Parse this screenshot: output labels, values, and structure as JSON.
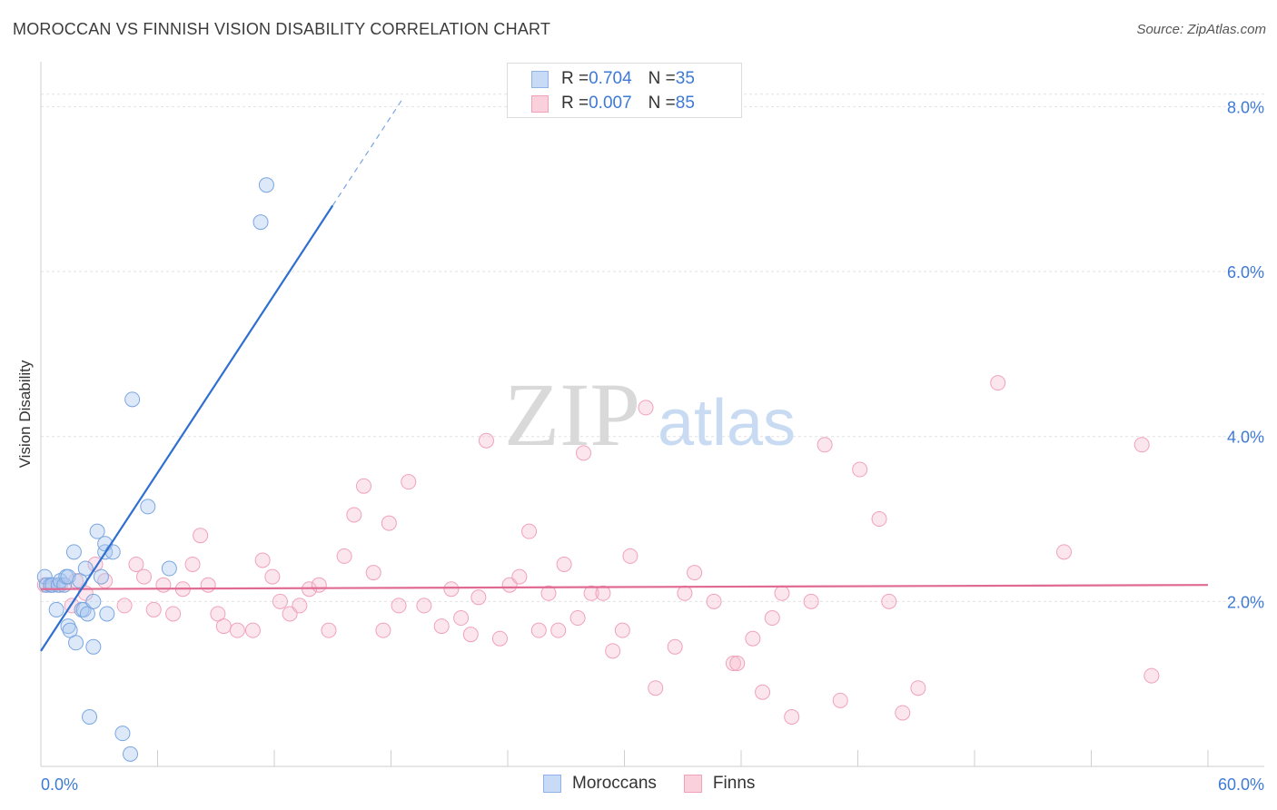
{
  "header": {
    "title": "MOROCCAN VS FINNISH VISION DISABILITY CORRELATION CHART",
    "source": "Source: ZipAtlas.com"
  },
  "legend": {
    "rows": [
      {
        "r_label": "R = ",
        "r_value": "0.704",
        "n_label": "N = ",
        "n_value": "35",
        "color": "#a9c8f0"
      },
      {
        "r_label": "R = ",
        "r_value": "0.007",
        "n_label": "N = ",
        "n_value": "85",
        "color": "#f6b8cc"
      }
    ],
    "bottom": [
      "Moroccans",
      "Finns"
    ]
  },
  "watermark": {
    "zip": "ZIP",
    "atlas": "atlas"
  },
  "chart_data": {
    "type": "scatter",
    "title": "MOROCCAN VS FINNISH VISION DISABILITY CORRELATION CHART",
    "xlabel": "",
    "ylabel": "Vision Disability",
    "xlim": [
      0,
      60
    ],
    "ylim": [
      0,
      8.5
    ],
    "x_tick_labels": [
      "0.0%",
      "60.0%"
    ],
    "y_ticks": [
      2,
      4,
      6,
      8
    ],
    "y_tick_labels": [
      "2.0%",
      "4.0%",
      "6.0%",
      "8.0%"
    ],
    "grid": true,
    "colors": {
      "moroccans": "#3d7ad6",
      "finns": "#e8779a"
    },
    "series": [
      {
        "name": "Moroccans",
        "trend": {
          "x0": 0,
          "y0": 1.4,
          "x1": 15,
          "y1": 6.8,
          "dashed_to_x": 18.6
        },
        "points": [
          [
            0.2,
            2.3
          ],
          [
            0.3,
            2.2
          ],
          [
            0.5,
            2.2
          ],
          [
            0.6,
            2.2
          ],
          [
            0.8,
            1.9
          ],
          [
            0.9,
            2.2
          ],
          [
            1.0,
            2.25
          ],
          [
            1.2,
            2.2
          ],
          [
            1.3,
            2.3
          ],
          [
            1.4,
            2.3
          ],
          [
            1.4,
            1.7
          ],
          [
            1.5,
            1.65
          ],
          [
            1.7,
            2.6
          ],
          [
            1.8,
            1.5
          ],
          [
            2.0,
            2.25
          ],
          [
            2.1,
            1.9
          ],
          [
            2.2,
            1.9
          ],
          [
            2.3,
            2.4
          ],
          [
            2.4,
            1.85
          ],
          [
            2.5,
            0.6
          ],
          [
            2.7,
            2.0
          ],
          [
            2.7,
            1.45
          ],
          [
            2.9,
            2.85
          ],
          [
            3.1,
            2.3
          ],
          [
            3.3,
            2.6
          ],
          [
            3.3,
            2.7
          ],
          [
            3.4,
            1.85
          ],
          [
            3.7,
            2.6
          ],
          [
            4.2,
            0.4
          ],
          [
            4.6,
            0.15
          ],
          [
            4.7,
            4.45
          ],
          [
            5.5,
            3.15
          ],
          [
            6.6,
            2.4
          ],
          [
            11.3,
            6.6
          ],
          [
            11.6,
            7.05
          ]
        ]
      },
      {
        "name": "Finns",
        "trend": {
          "x0": 0,
          "y0": 2.15,
          "x1": 60,
          "y1": 2.2
        },
        "points": [
          [
            0.2,
            2.2
          ],
          [
            1.0,
            2.2
          ],
          [
            1.6,
            1.95
          ],
          [
            2.3,
            2.1
          ],
          [
            2.8,
            2.45
          ],
          [
            3.3,
            2.25
          ],
          [
            4.3,
            1.95
          ],
          [
            4.9,
            2.45
          ],
          [
            5.3,
            2.3
          ],
          [
            5.8,
            1.9
          ],
          [
            6.3,
            2.2
          ],
          [
            6.8,
            1.85
          ],
          [
            7.3,
            2.15
          ],
          [
            7.8,
            2.45
          ],
          [
            8.2,
            2.8
          ],
          [
            8.6,
            2.2
          ],
          [
            9.1,
            1.85
          ],
          [
            9.4,
            1.7
          ],
          [
            10.1,
            1.65
          ],
          [
            10.9,
            1.65
          ],
          [
            11.4,
            2.5
          ],
          [
            11.9,
            2.3
          ],
          [
            12.3,
            2.0
          ],
          [
            12.8,
            1.85
          ],
          [
            13.3,
            1.95
          ],
          [
            13.8,
            2.15
          ],
          [
            14.3,
            2.2
          ],
          [
            14.8,
            1.65
          ],
          [
            15.6,
            2.55
          ],
          [
            16.1,
            3.05
          ],
          [
            16.6,
            3.4
          ],
          [
            17.1,
            2.35
          ],
          [
            17.6,
            1.65
          ],
          [
            17.9,
            2.95
          ],
          [
            18.4,
            1.95
          ],
          [
            18.9,
            3.45
          ],
          [
            19.7,
            1.95
          ],
          [
            20.6,
            1.7
          ],
          [
            21.1,
            2.15
          ],
          [
            21.6,
            1.8
          ],
          [
            22.1,
            1.6
          ],
          [
            22.5,
            2.05
          ],
          [
            22.9,
            3.95
          ],
          [
            23.6,
            1.55
          ],
          [
            24.1,
            2.2
          ],
          [
            24.6,
            2.3
          ],
          [
            25.1,
            2.85
          ],
          [
            25.6,
            1.65
          ],
          [
            26.1,
            2.1
          ],
          [
            26.6,
            1.65
          ],
          [
            26.9,
            2.45
          ],
          [
            27.6,
            1.8
          ],
          [
            27.9,
            3.8
          ],
          [
            28.3,
            2.1
          ],
          [
            28.9,
            2.1
          ],
          [
            29.4,
            1.4
          ],
          [
            29.9,
            1.65
          ],
          [
            30.3,
            2.55
          ],
          [
            31.1,
            4.35
          ],
          [
            31.6,
            0.95
          ],
          [
            32.6,
            1.45
          ],
          [
            33.1,
            2.1
          ],
          [
            33.6,
            2.35
          ],
          [
            34.6,
            2.0
          ],
          [
            35.6,
            1.25
          ],
          [
            35.8,
            1.25
          ],
          [
            36.6,
            1.55
          ],
          [
            37.1,
            0.9
          ],
          [
            37.6,
            1.8
          ],
          [
            38.1,
            2.1
          ],
          [
            38.6,
            0.6
          ],
          [
            39.6,
            2.0
          ],
          [
            40.3,
            3.9
          ],
          [
            41.1,
            0.8
          ],
          [
            42.1,
            3.6
          ],
          [
            43.1,
            3.0
          ],
          [
            43.6,
            2.0
          ],
          [
            44.3,
            0.65
          ],
          [
            45.1,
            0.95
          ],
          [
            49.2,
            4.65
          ],
          [
            52.6,
            2.6
          ],
          [
            56.6,
            3.9
          ],
          [
            57.1,
            1.1
          ],
          [
            0.5,
            2.2
          ],
          [
            1.8,
            2.25
          ]
        ]
      }
    ]
  }
}
